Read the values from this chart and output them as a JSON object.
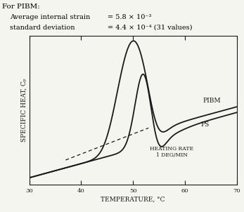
{
  "title_text": "For PIBM:",
  "subtitle1": "Average internal strain",
  "subtitle1_val": "= 5.8 × 10⁻³",
  "subtitle2": "standard deviation",
  "subtitle2_val": "= 4.4 × 10⁻⁴ (31 values)",
  "xlabel": "TEMPERATURE, °C",
  "ylabel": "SPECIFIC HEAT, Cₚ",
  "xlim": [
    30,
    70
  ],
  "ylim": [
    0.0,
    1.0
  ],
  "annotation_heating": "HEATING RATE\n1 DEG/MIN",
  "label_PIBM": "PIBM",
  "label_PS": "PS",
  "background_color": "#f5f5f0",
  "line_color": "#1a1a1a",
  "header_fontsize": 7.5,
  "axis_fontsize": 6.5,
  "tick_fontsize": 6.0,
  "label_fontsize": 6.5,
  "annot_fontsize": 5.5
}
